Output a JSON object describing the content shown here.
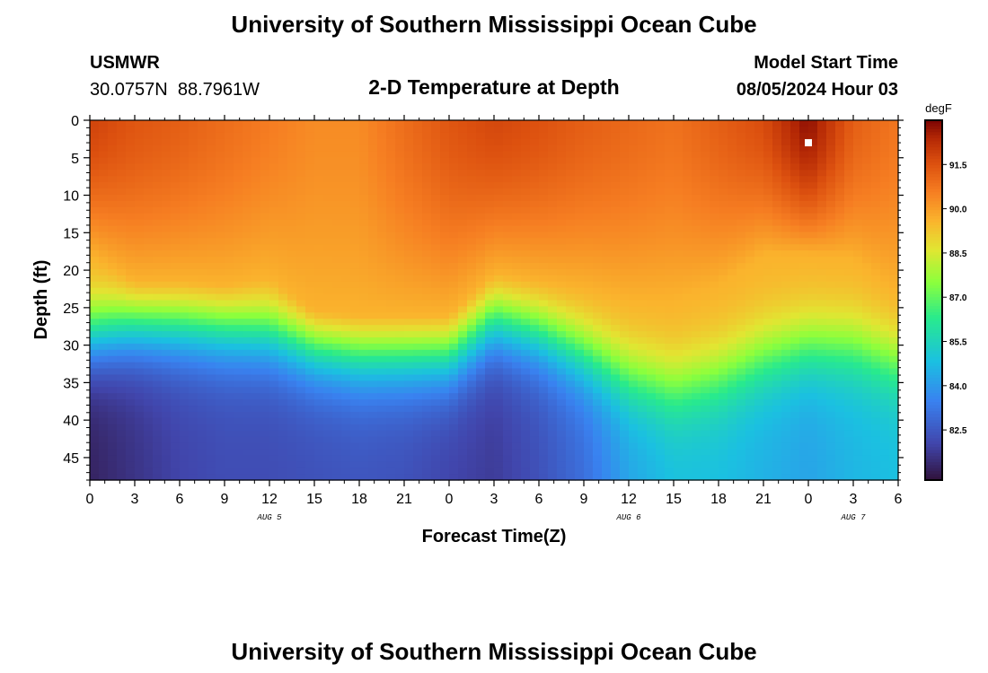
{
  "header": {
    "title_top": "University of Southern Mississippi Ocean Cube",
    "station": "USMWR",
    "coords": "30.0757N  88.7961W",
    "plot_title": "2-D Temperature at Depth",
    "model_label": "Model Start Time",
    "model_time": "08/05/2024 Hour 03",
    "title_bottom": "University of Southern Mississippi Ocean Cube"
  },
  "chart_data": {
    "type": "heatmap",
    "title": "2-D Temperature at Depth",
    "xlabel": "Forecast Time(Z)",
    "ylabel": "Depth (ft)",
    "x_range_hours": [
      0,
      54
    ],
    "y_range_ft": [
      0,
      48
    ],
    "x_tick_labels": [
      "0",
      "3",
      "6",
      "9",
      "12",
      "15",
      "18",
      "21",
      "0",
      "3",
      "6",
      "9",
      "12",
      "15",
      "18",
      "21",
      "0",
      "3",
      "6"
    ],
    "y_tick_labels": [
      "0",
      "5",
      "10",
      "15",
      "20",
      "25",
      "30",
      "35",
      "40",
      "45"
    ],
    "date_labels": [
      {
        "text": "AUG 5",
        "hour": 12
      },
      {
        "text": "AUG 6",
        "hour": 36
      },
      {
        "text": "AUG 7",
        "hour": 51
      }
    ],
    "colorbar": {
      "unit": "degF",
      "range": [
        80.8,
        93.0
      ],
      "ticks": [
        "91.5",
        "90.0",
        "88.5",
        "87.0",
        "85.5",
        "84.0",
        "82.5"
      ],
      "tick_values": [
        91.5,
        90.0,
        88.5,
        87.0,
        85.5,
        84.0,
        82.5
      ]
    },
    "marker": {
      "hour": 48,
      "depth_ft": 3,
      "color": "#ffffff"
    },
    "column_hours": [
      0,
      3,
      6,
      9,
      12,
      15,
      18,
      21,
      24,
      27,
      30,
      33,
      36,
      39,
      42,
      45,
      48,
      51,
      54
    ],
    "surface_temp_degF": [
      91.8,
      91.4,
      91.2,
      90.9,
      90.6,
      90.3,
      90.3,
      90.9,
      91.4,
      91.7,
      91.5,
      91.2,
      91.0,
      90.8,
      91.2,
      91.6,
      92.8,
      91.2,
      90.7
    ],
    "mixed_layer_depth_ft": [
      18.0,
      21.5,
      21.5,
      22.0,
      21.0,
      25.5,
      26.0,
      26.0,
      26.0,
      20.5,
      21.5,
      22.5,
      24.0,
      24.0,
      22.0,
      18.0,
      18.0,
      18.5,
      23.0
    ],
    "thermocline_mid_depth_ft": [
      28.5,
      27.0,
      27.0,
      27.5,
      28.0,
      30.0,
      31.0,
      31.0,
      31.0,
      26.5,
      28.0,
      31.0,
      34.0,
      35.5,
      34.0,
      31.5,
      30.0,
      30.0,
      32.0
    ],
    "bottom_temp_degF": [
      81.2,
      81.6,
      82.0,
      82.2,
      82.2,
      82.3,
      82.4,
      82.3,
      82.0,
      81.8,
      82.3,
      83.0,
      84.2,
      84.8,
      84.8,
      84.5,
      84.2,
      84.6,
      84.8
    ]
  }
}
